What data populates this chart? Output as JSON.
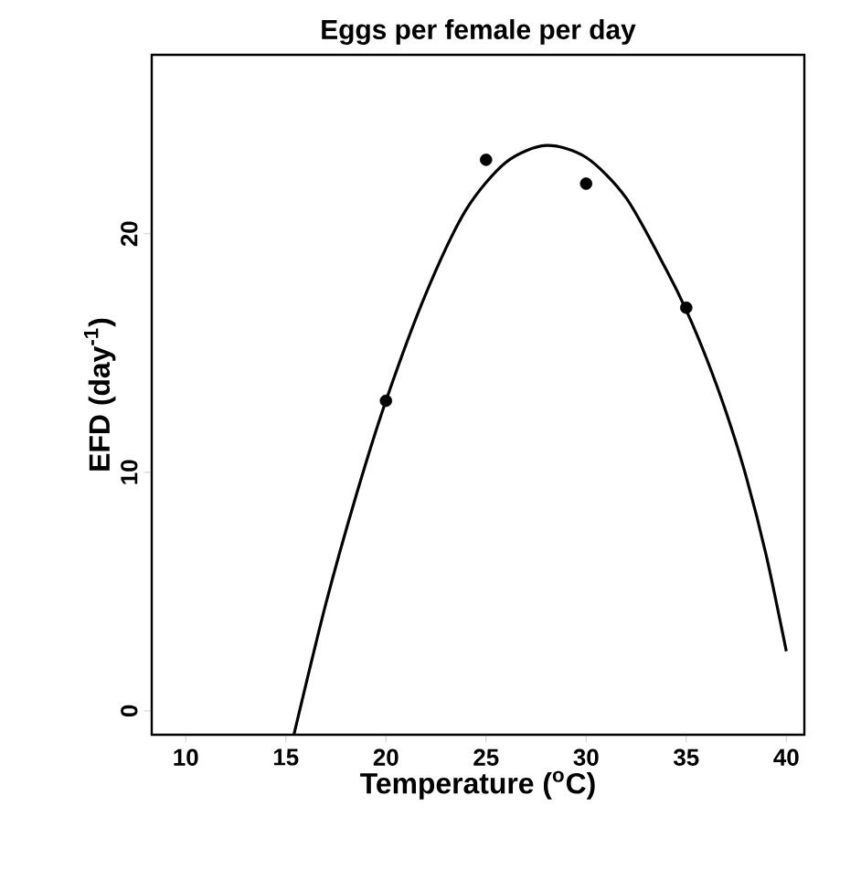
{
  "chart_data": {
    "type": "scatter",
    "title": "Eggs per female per day",
    "xlabel": "Temperature ($^{o}$C)",
    "ylabel": "EFD (day$^{-1}$)",
    "xlim": [
      8.3,
      40.9
    ],
    "ylim": [
      -1,
      27.5
    ],
    "xticks": [
      10,
      15,
      20,
      25,
      30,
      35,
      40
    ],
    "yticks": [
      0,
      10,
      20
    ],
    "series": [
      {
        "marker": "circle",
        "color": "#000000",
        "x": [
          20,
          25,
          30,
          35
        ],
        "values": [
          13,
          23.1,
          22.1,
          16.9
        ]
      },
      {
        "type": "line",
        "marker": "none",
        "line_style": "solid",
        "color": "#000000",
        "x": [
          15.4,
          17,
          18.5,
          20,
          22,
          24,
          26,
          28,
          30,
          32,
          34,
          35,
          36,
          37,
          38,
          39,
          40
        ],
        "values": [
          -1,
          4.5,
          9,
          13,
          17.5,
          21,
          23,
          23.7,
          23.2,
          21.5,
          18.5,
          16.8,
          14.8,
          12.5,
          9.8,
          6.5,
          2.5
        ]
      }
    ]
  }
}
